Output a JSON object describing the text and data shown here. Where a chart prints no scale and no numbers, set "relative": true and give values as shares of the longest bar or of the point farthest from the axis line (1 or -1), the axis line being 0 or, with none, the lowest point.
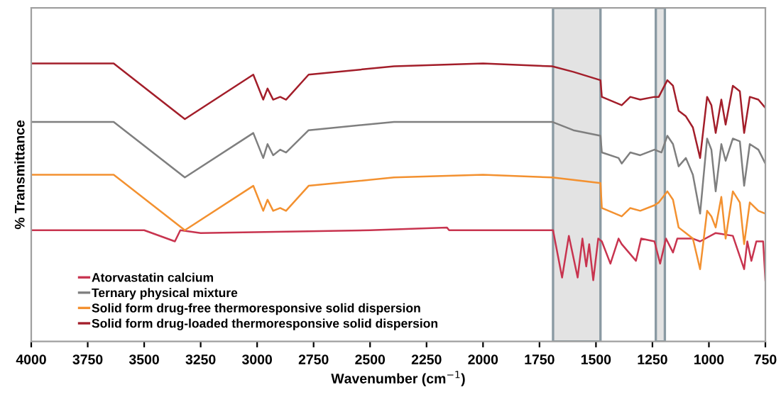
{
  "chart_data": {
    "type": "line",
    "relative": true,
    "xlabel": "Wavenumber (cm$^{−1}$)",
    "ylabel": "% Transmittance",
    "xlim": [
      4000,
      750
    ],
    "xticks": [
      4000,
      3750,
      3500,
      3250,
      3000,
      2750,
      2500,
      2250,
      2000,
      1750,
      1500,
      1250,
      1000,
      750
    ],
    "grid": false,
    "legend": "bottom left",
    "marker": "none",
    "line_style": "solid",
    "bands": [
      {
        "axis": "x",
        "from": 1690,
        "to": 1480,
        "color": "#e3e3e3"
      },
      {
        "axis": "x",
        "from": 1235,
        "to": 1195,
        "color": "#e3e3e3"
      }
    ],
    "series": [
      {
        "name": "Atorvastatin calcium",
        "color": "#c8344f",
        "x": [
          4000,
          3500,
          3364,
          3340,
          3250,
          2500,
          2160,
          2150,
          1690,
          1650,
          1620,
          1581,
          1560,
          1543,
          1530,
          1512,
          1490,
          1474,
          1436,
          1400,
          1386,
          1323,
          1300,
          1241,
          1216,
          1190,
          1159,
          1140,
          1071,
          1039,
          970,
          894,
          844,
          830,
          812,
          790,
          760,
          750
        ],
        "values": [
          0.4,
          0.4,
          0.36,
          0.4,
          0.39,
          0.4,
          0.41,
          0.4,
          0.4,
          0.23,
          0.38,
          0.23,
          0.37,
          0.27,
          0.35,
          0.22,
          0.37,
          0.36,
          0.28,
          0.37,
          0.35,
          0.29,
          0.37,
          0.36,
          0.28,
          0.37,
          0.32,
          0.37,
          0.37,
          0.36,
          0.39,
          0.38,
          0.26,
          0.36,
          0.29,
          0.36,
          0.36,
          0.22
        ]
      },
      {
        "name": "Ternary physical mixture",
        "color": "#7f7f7f",
        "x": [
          4000,
          3635,
          3320,
          3017,
          2973,
          2954,
          2929,
          2898,
          2872,
          2772,
          2394,
          2000,
          1694,
          1600,
          1480,
          1474,
          1400,
          1386,
          1348,
          1304,
          1241,
          1210,
          1184,
          1159,
          1134,
          1102,
          1071,
          1039,
          1008,
          989,
          970,
          945,
          926,
          894,
          863,
          844,
          819,
          781,
          750
        ],
        "values": [
          0.79,
          0.79,
          0.59,
          0.75,
          0.66,
          0.71,
          0.67,
          0.69,
          0.68,
          0.76,
          0.79,
          0.79,
          0.79,
          0.76,
          0.74,
          0.68,
          0.66,
          0.64,
          0.68,
          0.67,
          0.69,
          0.68,
          0.74,
          0.71,
          0.63,
          0.66,
          0.6,
          0.46,
          0.73,
          0.69,
          0.54,
          0.71,
          0.65,
          0.73,
          0.72,
          0.56,
          0.71,
          0.69,
          0.64
        ]
      },
      {
        "name": "Solid form drug-free thermoresponsive solid dispersion",
        "color": "#f39130",
        "x": [
          4000,
          3635,
          3320,
          3017,
          2973,
          2954,
          2929,
          2898,
          2872,
          2772,
          2394,
          2000,
          1694,
          1480,
          1474,
          1386,
          1348,
          1304,
          1241,
          1222,
          1184,
          1159,
          1134,
          1102,
          1071,
          1039,
          1008,
          989,
          970,
          945,
          926,
          894,
          863,
          844,
          819,
          781,
          750
        ],
        "values": [
          0.6,
          0.6,
          0.4,
          0.56,
          0.47,
          0.51,
          0.47,
          0.48,
          0.47,
          0.56,
          0.59,
          0.6,
          0.59,
          0.57,
          0.48,
          0.45,
          0.48,
          0.47,
          0.49,
          0.5,
          0.54,
          0.51,
          0.41,
          0.39,
          0.37,
          0.26,
          0.47,
          0.45,
          0.41,
          0.52,
          0.37,
          0.54,
          0.5,
          0.35,
          0.5,
          0.47,
          0.46
        ]
      },
      {
        "name": "Solid form drug-loaded thermoresponsive solid dispersion",
        "color": "#a31e2a",
        "x": [
          4000,
          3635,
          3320,
          3017,
          2973,
          2954,
          2929,
          2898,
          2872,
          2772,
          2394,
          2000,
          1694,
          1600,
          1480,
          1474,
          1386,
          1348,
          1304,
          1241,
          1222,
          1184,
          1159,
          1134,
          1102,
          1071,
          1039,
          1008,
          989,
          970,
          945,
          926,
          894,
          863,
          844,
          819,
          781,
          750
        ],
        "values": [
          1.0,
          1.0,
          0.8,
          0.96,
          0.87,
          0.91,
          0.87,
          0.88,
          0.87,
          0.96,
          0.99,
          1.0,
          0.99,
          0.97,
          0.94,
          0.88,
          0.85,
          0.88,
          0.87,
          0.88,
          0.88,
          0.94,
          0.92,
          0.83,
          0.81,
          0.77,
          0.66,
          0.88,
          0.85,
          0.75,
          0.87,
          0.78,
          0.92,
          0.9,
          0.75,
          0.88,
          0.87,
          0.84
        ]
      }
    ]
  }
}
